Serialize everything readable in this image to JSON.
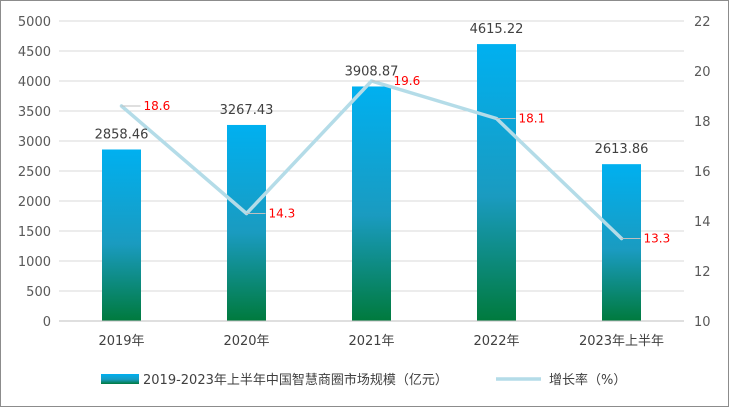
{
  "chart_data": {
    "type": "bar",
    "categories": [
      "2019年",
      "2020年",
      "2021年",
      "2022年",
      "2023年上半年"
    ],
    "series": [
      {
        "name": "2019-2023年上半年中国智慧商圈市场规模（亿元）",
        "type": "bar",
        "axis": "left",
        "values": [
          2858.46,
          3267.43,
          3908.87,
          4615.22,
          2613.86
        ],
        "value_labels": [
          "2858.46",
          "3267.43",
          "3908.87",
          "4615.22",
          "2613.86"
        ]
      },
      {
        "name": "增长率（%）",
        "type": "line",
        "axis": "right",
        "values": [
          18.6,
          14.3,
          19.6,
          18.1,
          13.3
        ],
        "value_labels": [
          "18.6",
          "14.3",
          "19.6",
          "18.1",
          "13.3"
        ]
      }
    ],
    "y_left": {
      "lim": [
        0,
        5000
      ],
      "ticks": [
        0,
        500,
        1000,
        1500,
        2000,
        2500,
        3000,
        3500,
        4000,
        4500,
        5000
      ],
      "tick_labels": [
        "0",
        "500",
        "1000",
        "1500",
        "2000",
        "2500",
        "3000",
        "3500",
        "4000",
        "4500",
        "5000"
      ]
    },
    "y_right": {
      "lim": [
        10,
        22
      ],
      "ticks": [
        10,
        12,
        14,
        16,
        18,
        20,
        22
      ],
      "tick_labels": [
        "10",
        "12",
        "14",
        "16",
        "18",
        "20",
        "22"
      ]
    },
    "grid": true,
    "legend": "bottom",
    "colors": {
      "bar_top": "#00b0f0",
      "bar_bottom": "#007a3d",
      "line": "#b4dce8",
      "line_label": "#ff0000",
      "grid": "#d9d9d9",
      "text": "#404040"
    }
  }
}
